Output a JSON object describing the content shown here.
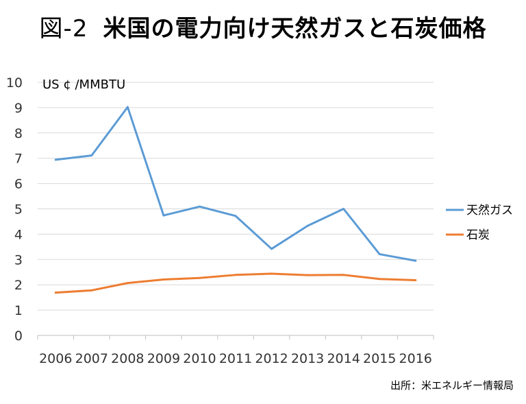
{
  "title": {
    "figure_label": "図-2",
    "text": "米国の電力向け天然ガスと石炭価格"
  },
  "source": "出所：米エネルギー情報局",
  "chart_data": {
    "type": "line",
    "title": "図-2　米国の電力向け天然ガスと石炭価格",
    "ylabel": "US ¢ /MMBTU",
    "xlabel": "",
    "categories": [
      "2006",
      "2007",
      "2008",
      "2009",
      "2010",
      "2011",
      "2012",
      "2013",
      "2014",
      "2015",
      "2016"
    ],
    "ylim": [
      0,
      10
    ],
    "yticks": [
      0,
      1,
      2,
      3,
      4,
      5,
      6,
      7,
      8,
      9,
      10
    ],
    "grid": true,
    "legend_position": "right",
    "series": [
      {
        "name": "天然ガス",
        "color": "#5b9bd5",
        "values": [
          6.94,
          7.11,
          9.02,
          4.74,
          5.09,
          4.72,
          3.42,
          4.33,
          5.0,
          3.21,
          2.95
        ]
      },
      {
        "name": "石炭",
        "color": "#ed7d31",
        "values": [
          1.69,
          1.78,
          2.07,
          2.21,
          2.27,
          2.39,
          2.44,
          2.38,
          2.39,
          2.23,
          2.18
        ]
      }
    ]
  }
}
